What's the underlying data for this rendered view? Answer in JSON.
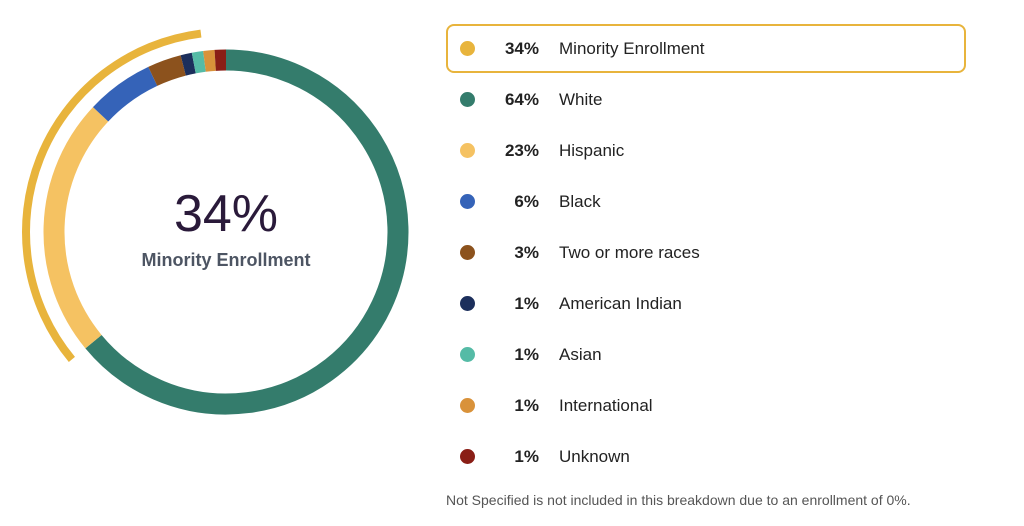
{
  "chart_data": {
    "type": "pie",
    "variant": "donut",
    "center": {
      "value": "34%",
      "label": "Minority Enrollment"
    },
    "highlight": {
      "label": "Minority Enrollment",
      "value": 34,
      "display": "34%",
      "color": "#e8b43c"
    },
    "slices": [
      {
        "label": "White",
        "value": 64,
        "display": "64%",
        "color": "#347c6c"
      },
      {
        "label": "Hispanic",
        "value": 23,
        "display": "23%",
        "color": "#f5c262"
      },
      {
        "label": "Black",
        "value": 6,
        "display": "6%",
        "color": "#3563b8"
      },
      {
        "label": "Two or more races",
        "value": 3,
        "display": "3%",
        "color": "#8c521d"
      },
      {
        "label": "American Indian",
        "value": 1,
        "display": "1%",
        "color": "#1c2f5c"
      },
      {
        "label": "Asian",
        "value": 1,
        "display": "1%",
        "color": "#55bba6"
      },
      {
        "label": "International",
        "value": 1,
        "display": "1%",
        "color": "#d9923a"
      },
      {
        "label": "Unknown",
        "value": 1,
        "display": "1%",
        "color": "#8a1e16"
      }
    ],
    "legend_placement": "right"
  },
  "note": "Not Specified is not included in this breakdown due to an enrollment of 0%."
}
